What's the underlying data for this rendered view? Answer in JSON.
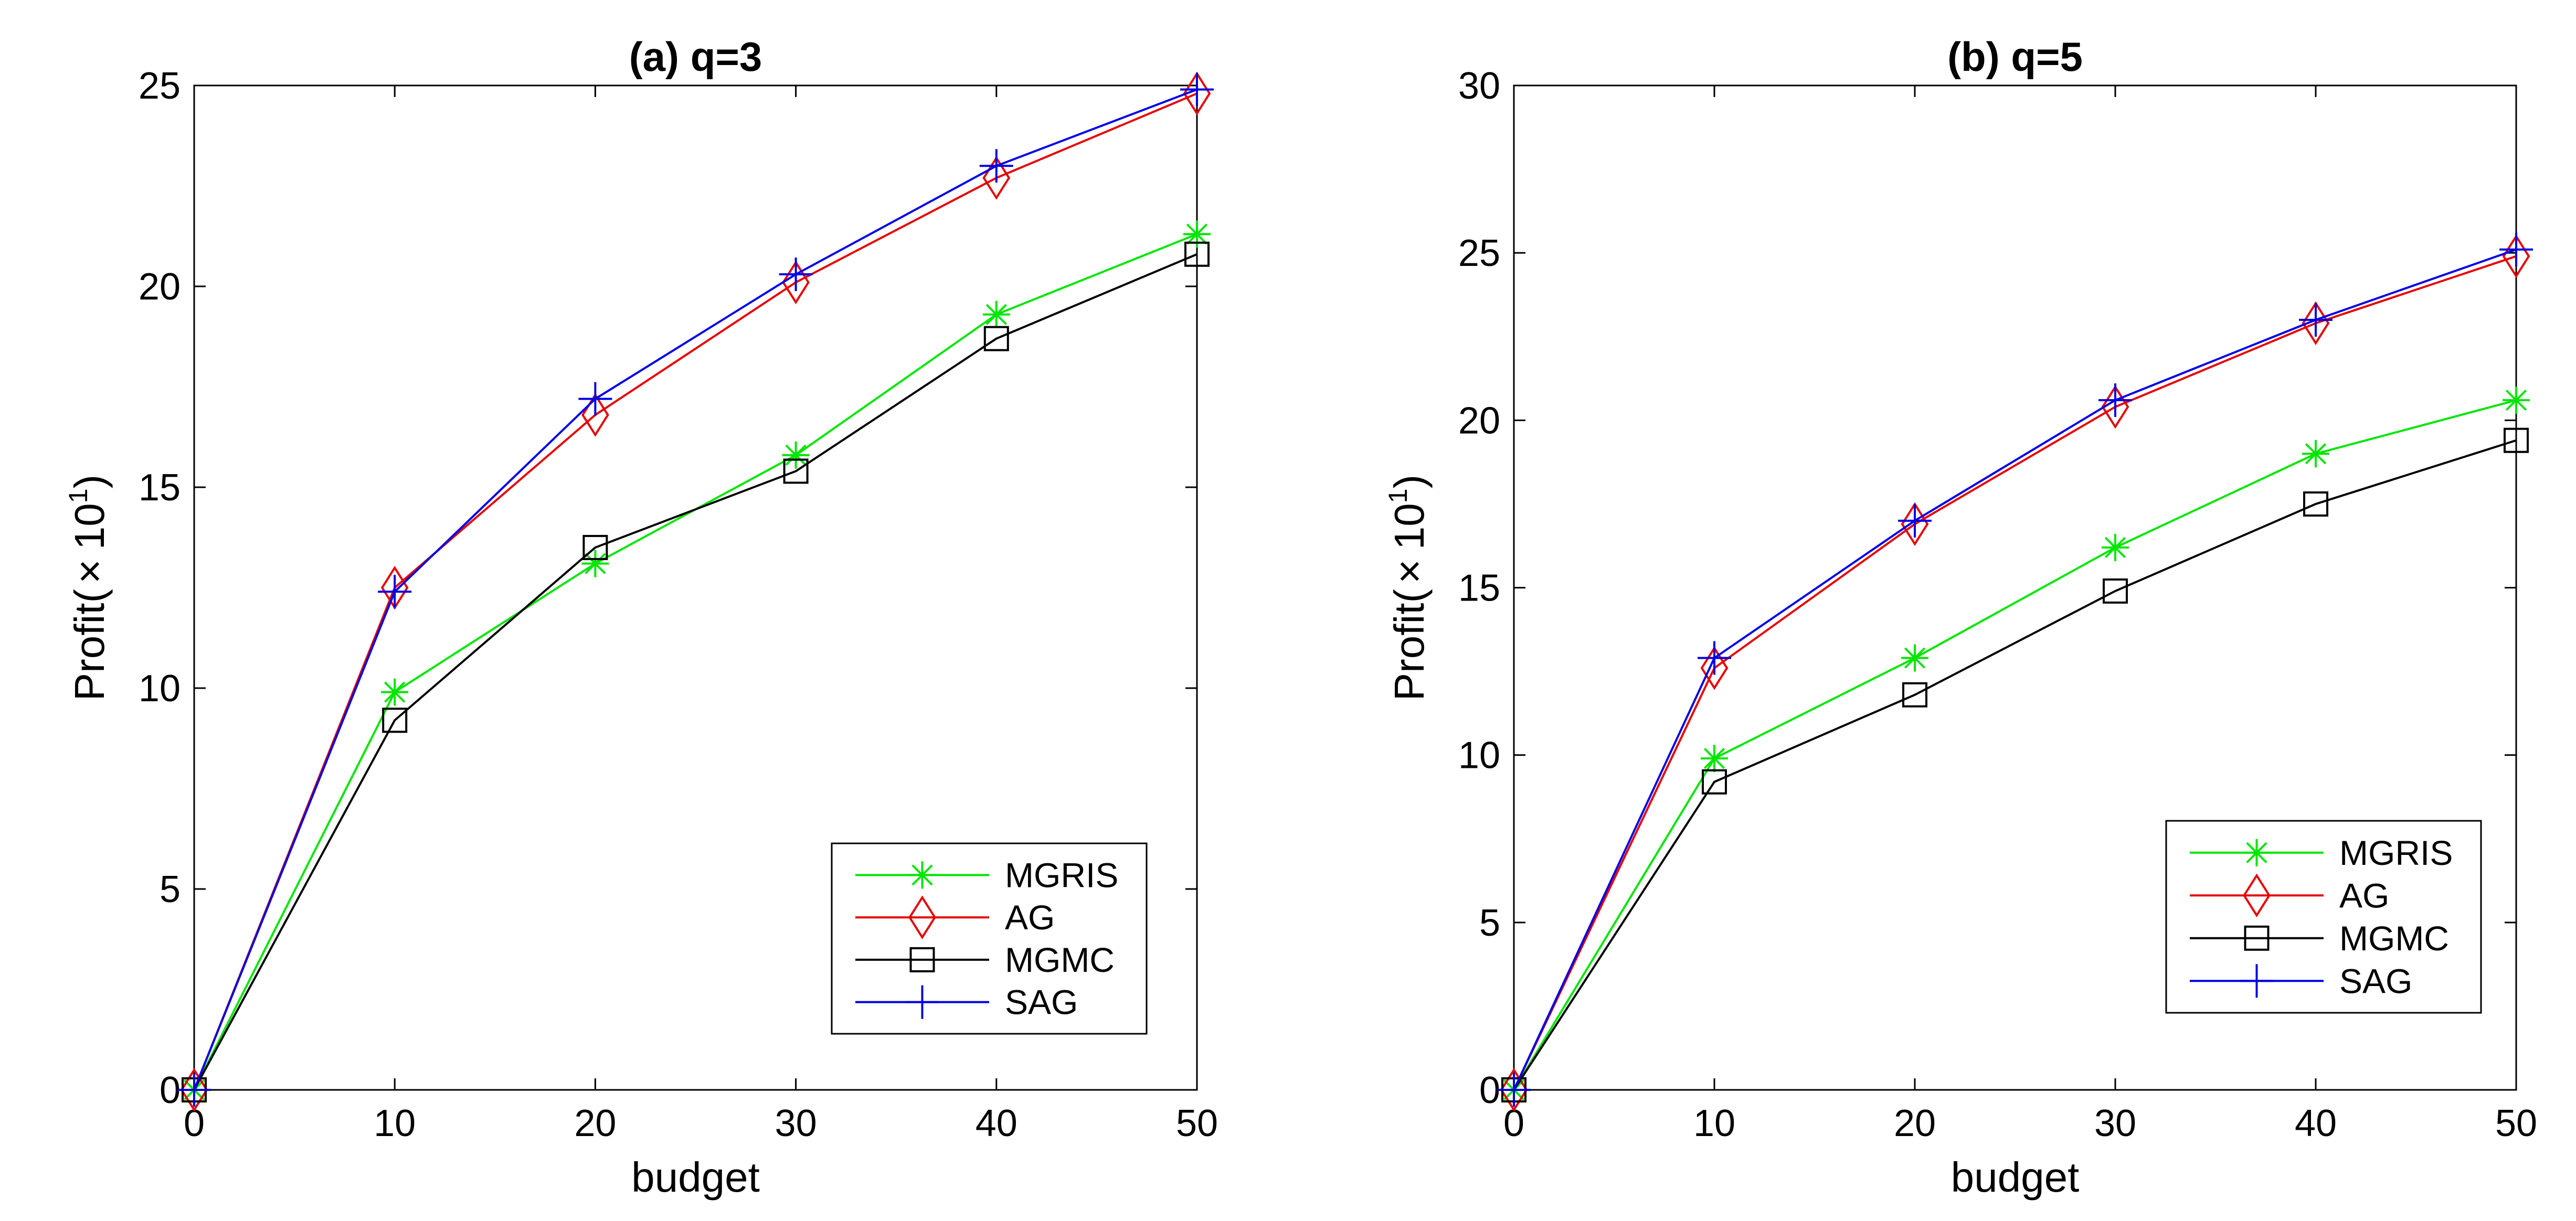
{
  "chart_data": [
    {
      "type": "line",
      "title": "(a) q=3",
      "xlabel": "budget",
      "ylabel": {
        "main": "Profit(",
        "times": "×",
        "base": "10",
        "exp": "1",
        "close": ")"
      },
      "x": [
        0,
        10,
        20,
        30,
        40,
        50
      ],
      "xlim": [
        0,
        50
      ],
      "ylim": [
        0,
        25
      ],
      "xticks": [
        0,
        10,
        20,
        30,
        40,
        50
      ],
      "yticks": [
        0,
        5,
        10,
        15,
        20,
        25
      ],
      "legend_position": "bottom-right",
      "series": [
        {
          "name": "MGRIS",
          "values": [
            0,
            9.9,
            13.1,
            15.8,
            19.3,
            21.3
          ],
          "color": "#00e600",
          "marker": "asterisk"
        },
        {
          "name": "AG",
          "values": [
            0,
            12.5,
            16.8,
            20.1,
            22.7,
            24.8
          ],
          "color": "#e60000",
          "marker": "diamond"
        },
        {
          "name": "MGMC",
          "values": [
            0,
            9.2,
            13.5,
            15.4,
            18.7,
            20.8
          ],
          "color": "#000000",
          "marker": "square"
        },
        {
          "name": "SAG",
          "values": [
            0,
            12.4,
            17.2,
            20.3,
            23.0,
            24.9
          ],
          "color": "#0000e6",
          "marker": "plus"
        }
      ]
    },
    {
      "type": "line",
      "title": "(b) q=5",
      "xlabel": "budget",
      "ylabel": {
        "main": "Profit(",
        "times": "×",
        "base": "10",
        "exp": "1",
        "close": ")"
      },
      "x": [
        0,
        10,
        20,
        30,
        40,
        50
      ],
      "xlim": [
        0,
        50
      ],
      "ylim": [
        0,
        30
      ],
      "xticks": [
        0,
        10,
        20,
        30,
        40,
        50
      ],
      "yticks": [
        0,
        5,
        10,
        15,
        20,
        25,
        30
      ],
      "legend_position": "bottom-right",
      "series": [
        {
          "name": "MGRIS",
          "values": [
            0,
            9.9,
            12.9,
            16.2,
            19.0,
            20.6
          ],
          "color": "#00e600",
          "marker": "asterisk"
        },
        {
          "name": "AG",
          "values": [
            0,
            12.6,
            16.9,
            20.4,
            22.9,
            24.9
          ],
          "color": "#e60000",
          "marker": "diamond"
        },
        {
          "name": "MGMC",
          "values": [
            0,
            9.2,
            11.8,
            14.9,
            17.5,
            19.4
          ],
          "color": "#000000",
          "marker": "square"
        },
        {
          "name": "SAG",
          "values": [
            0,
            12.9,
            17.0,
            20.6,
            23.0,
            25.1
          ],
          "color": "#0000e6",
          "marker": "plus"
        }
      ]
    }
  ]
}
